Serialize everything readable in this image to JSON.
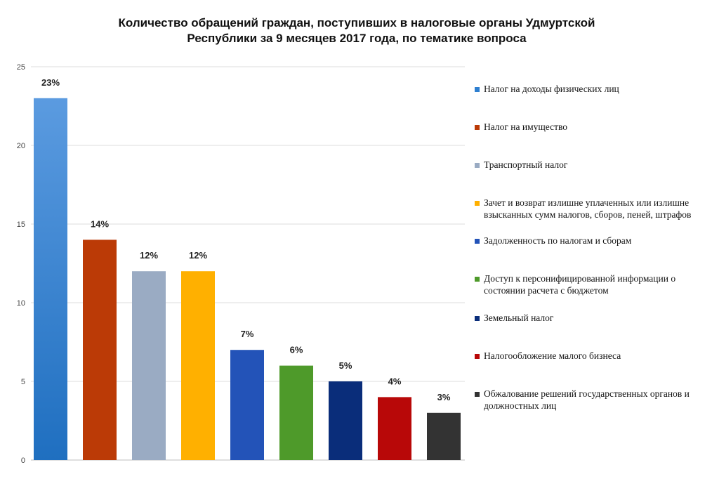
{
  "chart_data": {
    "type": "bar",
    "title": "Количество обращений граждан, поступивших в налоговые органы Удмуртской Республики за 9 месяцев 2017 года, по тематике вопроса",
    "title_lines": [
      "Количество обращений граждан, поступивших в налоговые органы Удмуртской",
      "Республики за 9 месяцев 2017 года, по тематике вопроса"
    ],
    "xlabel": "",
    "ylabel": "",
    "ylim": [
      0,
      25
    ],
    "yticks": [
      0,
      5,
      10,
      15,
      20,
      25
    ],
    "grid": true,
    "legend_position": "right",
    "categories": [
      "Налог на доходы физических  лиц",
      "Налог на имущество",
      "Транспортный налог",
      "Зачет и возврат излишне уплаченных или излишне взысканных сумм налогов, сборов, пеней, штрафов",
      "Задолженность по налогам и сборам",
      "Доступ к персонифицированной информации о состоянии расчета с бюджетом",
      "Земельный налог",
      "Налогообложение малого  бизнеса",
      "Обжалование решений государственных органов и должностных лиц"
    ],
    "values": [
      23,
      14,
      12,
      12,
      7,
      6,
      5,
      4,
      3
    ],
    "data_labels": [
      "23%",
      "14%",
      "12%",
      "12%",
      "7%",
      "6%",
      "5%",
      "4%",
      "3%"
    ],
    "colors": [
      "#2e7fd0",
      "#bb3a06",
      "#9aabc3",
      "#ffb000",
      "#2353b8",
      "#4e9a2a",
      "#0a2d7a",
      "#b80808",
      "#333333"
    ]
  },
  "legend": {
    "items": [
      "Налог на доходы физических  лиц",
      "Налог на имущество",
      "Транспортный налог",
      "Зачет и возврат излишне уплаченных или излишне взысканных сумм налогов, сборов, пеней, штрафов",
      "Задолженность по налогам и сборам",
      "Доступ к персонифицированной информации о состоянии расчета с бюджетом",
      "Земельный налог",
      "Налогообложение малого  бизнеса",
      "Обжалование решений государственных органов и должностных лиц"
    ]
  }
}
